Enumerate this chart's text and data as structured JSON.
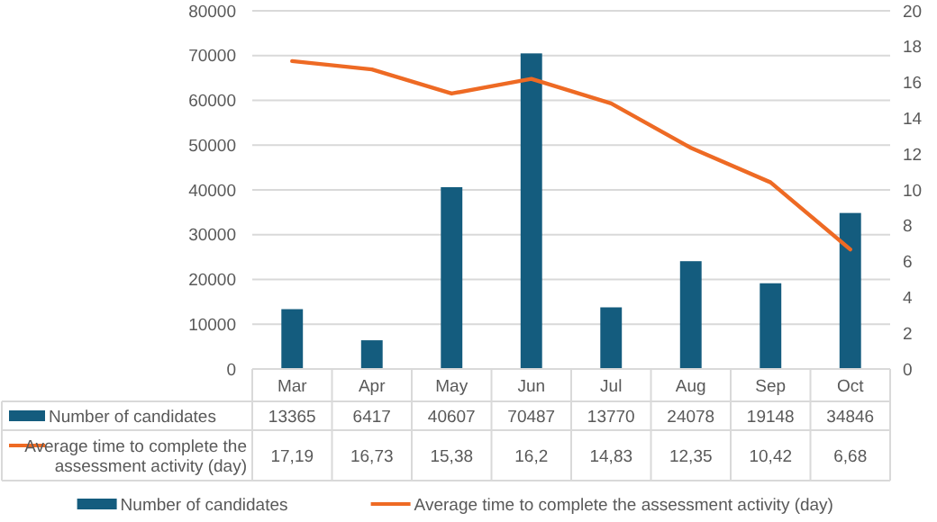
{
  "chart_data": {
    "type": "bar",
    "categories": [
      "Mar",
      "Apr",
      "May",
      "Jun",
      "Jul",
      "Aug",
      "Sep",
      "Oct"
    ],
    "series": [
      {
        "name": "Number of candidates",
        "color": "#145c7e",
        "values": [
          13365,
          6417,
          40607,
          70487,
          13770,
          24078,
          19148,
          34846
        ],
        "value_labels": [
          "13365",
          "6417",
          "40607",
          "70487",
          "13770",
          "24078",
          "19148",
          "34846"
        ]
      },
      {
        "name": "Average time to complete the assessment activity (day)",
        "type": "line",
        "axis": "y2",
        "color": "#ee6a24",
        "values": [
          17.19,
          16.73,
          15.38,
          16.2,
          14.83,
          12.35,
          10.42,
          6.68
        ],
        "value_labels": [
          "17,19",
          "16,73",
          "15,38",
          "16,2",
          "14,83",
          "12,35",
          "10,42",
          "6,68"
        ]
      }
    ],
    "ylim": [
      0,
      80000
    ],
    "yticks": [
      0,
      10000,
      20000,
      30000,
      40000,
      50000,
      60000,
      70000,
      80000
    ],
    "y2lim": [
      0,
      20
    ],
    "y2ticks": [
      0,
      2,
      4,
      6,
      8,
      10,
      12,
      14,
      16,
      18,
      20
    ],
    "grid": "y",
    "legend": "bottom",
    "line_style": "solid",
    "marker": "none"
  }
}
